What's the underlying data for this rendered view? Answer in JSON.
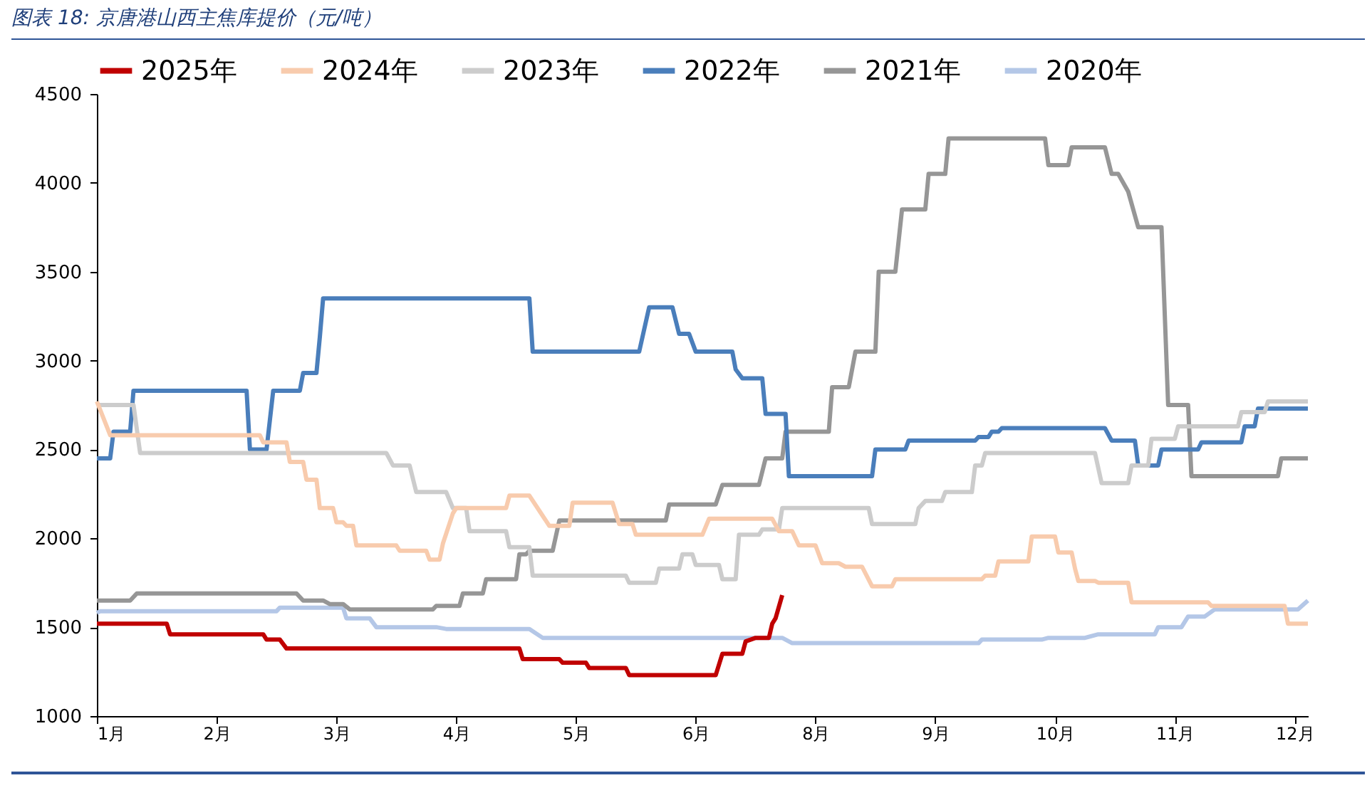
{
  "chart_data": {
    "type": "line",
    "title": "图表 18:  京唐港山西主焦库提价（元/吨）",
    "legend": "top",
    "line_style": "solid",
    "ylim": [
      1000,
      4500
    ],
    "yticks": [
      1000,
      1500,
      2000,
      2500,
      3000,
      3500,
      4000,
      4500
    ],
    "xlim": [
      "--01-01",
      "--12-31"
    ],
    "xticks": [
      {
        "value": "--01-01",
        "label": "1月"
      },
      {
        "value": "--02-06",
        "label": "2月"
      },
      {
        "value": "--03-14",
        "label": "3月"
      },
      {
        "value": "--04-19",
        "label": "4月"
      },
      {
        "value": "--05-25",
        "label": "5月"
      },
      {
        "value": "--06-30",
        "label": "6月"
      },
      {
        "value": "--08-05",
        "label": "8月"
      },
      {
        "value": "--09-10",
        "label": "9月"
      },
      {
        "value": "--10-16",
        "label": "10月"
      },
      {
        "value": "--11-21",
        "label": "11月"
      },
      {
        "value": "--12-27",
        "label": "12月"
      }
    ],
    "series": [
      {
        "name": "2025年",
        "color": "#c00000",
        "x": [
          "--01-01",
          "--01-22",
          "--01-23",
          "--02-20",
          "--02-21",
          "--02-25",
          "--02-27",
          "--05-08",
          "--05-09",
          "--05-20",
          "--05-21",
          "--05-28",
          "--05-29",
          "--06-09",
          "--06-10",
          "--07-06",
          "--07-08",
          "--07-14",
          "--07-15",
          "--07-18",
          "--07-22",
          "--07-23",
          "--07-24",
          "--07-26"
        ],
        "values": [
          1520,
          1520,
          1460,
          1460,
          1430,
          1430,
          1380,
          1380,
          1320,
          1320,
          1300,
          1300,
          1270,
          1270,
          1230,
          1230,
          1350,
          1350,
          1420,
          1440,
          1440,
          1520,
          1550,
          1680
        ]
      },
      {
        "name": "2024年",
        "color": "#f8cbad",
        "x": [
          "--01-01",
          "--01-05",
          "--02-19",
          "--02-20",
          "--02-27",
          "--02-28",
          "--03-04",
          "--03-05",
          "--03-08",
          "--03-09",
          "--03-13",
          "--03-14",
          "--03-16",
          "--03-17",
          "--03-19",
          "--03-20",
          "--04-01",
          "--04-02",
          "--04-10",
          "--04-11",
          "--04-14",
          "--04-15",
          "--04-18",
          "--04-19",
          "--05-04",
          "--05-05",
          "--05-11",
          "--05-17",
          "--05-23",
          "--05-24",
          "--06-05",
          "--06-07",
          "--06-11",
          "--06-12",
          "--07-02",
          "--07-04",
          "--07-23",
          "--07-25",
          "--07-29",
          "--07-31",
          "--08-05",
          "--08-07",
          "--08-12",
          "--08-14",
          "--08-19",
          "--08-22",
          "--08-28",
          "--08-29",
          "--09-24",
          "--09-25",
          "--09-28",
          "--09-29",
          "--10-08",
          "--10-09",
          "--10-16",
          "--10-17",
          "--10-21",
          "--10-22",
          "--10-23",
          "--10-28",
          "--10-29",
          "--11-07",
          "--11-08",
          "--12-01",
          "--12-02",
          "--12-24",
          "--12-25",
          "--12-31"
        ],
        "values": [
          2770,
          2580,
          2580,
          2540,
          2540,
          2430,
          2430,
          2330,
          2330,
          2170,
          2170,
          2090,
          2090,
          2070,
          2070,
          1960,
          1960,
          1930,
          1930,
          1880,
          1880,
          1970,
          2140,
          2170,
          2170,
          2240,
          2240,
          2070,
          2070,
          2200,
          2200,
          2080,
          2080,
          2020,
          2020,
          2110,
          2110,
          2040,
          2040,
          1960,
          1960,
          1860,
          1860,
          1840,
          1840,
          1730,
          1730,
          1770,
          1770,
          1790,
          1790,
          1870,
          1870,
          2010,
          2010,
          1920,
          1920,
          1830,
          1760,
          1760,
          1750,
          1750,
          1640,
          1640,
          1620,
          1620,
          1520,
          1520
        ]
      },
      {
        "name": "2023年",
        "color": "#cccccc",
        "x": [
          "--01-01",
          "--01-12",
          "--01-14",
          "--03-29",
          "--03-31",
          "--04-05",
          "--04-07",
          "--04-16",
          "--04-18",
          "--04-22",
          "--04-23",
          "--05-04",
          "--05-05",
          "--05-11",
          "--05-12",
          "--06-09",
          "--06-10",
          "--06-18",
          "--06-19",
          "--06-25",
          "--06-26",
          "--06-29",
          "--06-30",
          "--07-07",
          "--07-08",
          "--07-12",
          "--07-13",
          "--07-19",
          "--07-20",
          "--07-25",
          "--07-26",
          "--08-21",
          "--08-22",
          "--09-04",
          "--09-05",
          "--09-07",
          "--09-12",
          "--09-13",
          "--09-21",
          "--09-22",
          "--09-24",
          "--09-25",
          "--10-28",
          "--10-30",
          "--11-07",
          "--11-08",
          "--11-13",
          "--11-14",
          "--11-21",
          "--11-22",
          "--12-10",
          "--12-11",
          "--12-18",
          "--12-19",
          "--12-31"
        ],
        "values": [
          2750,
          2750,
          2480,
          2480,
          2410,
          2410,
          2260,
          2260,
          2170,
          2170,
          2040,
          2040,
          1950,
          1950,
          1790,
          1790,
          1750,
          1750,
          1830,
          1830,
          1910,
          1910,
          1850,
          1850,
          1770,
          1770,
          2020,
          2020,
          2050,
          2050,
          2170,
          2170,
          2080,
          2080,
          2170,
          2210,
          2210,
          2260,
          2260,
          2410,
          2410,
          2480,
          2480,
          2310,
          2310,
          2410,
          2410,
          2560,
          2560,
          2630,
          2630,
          2710,
          2710,
          2770,
          2770
        ]
      },
      {
        "name": "2022年",
        "color": "#4a7ebb",
        "x": [
          "--01-01",
          "--01-05",
          "--01-06",
          "--01-11",
          "--01-12",
          "--02-15",
          "--02-16",
          "--02-21",
          "--02-23",
          "--03-03",
          "--03-04",
          "--03-08",
          "--03-09",
          "--03-10",
          "--05-11",
          "--05-12",
          "--06-13",
          "--06-16",
          "--06-23",
          "--06-25",
          "--06-28",
          "--06-30",
          "--07-11",
          "--07-12",
          "--07-14",
          "--07-20",
          "--07-21",
          "--07-27",
          "--07-28",
          "--08-22",
          "--08-23",
          "--09-01",
          "--09-02",
          "--09-22",
          "--09-23",
          "--09-26",
          "--09-27",
          "--09-29",
          "--09-30",
          "--10-31",
          "--11-02",
          "--11-09",
          "--11-10",
          "--11-16",
          "--11-17",
          "--11-28",
          "--11-29",
          "--12-11",
          "--12-12",
          "--12-15",
          "--12-16",
          "--12-31"
        ],
        "values": [
          2450,
          2450,
          2600,
          2600,
          2830,
          2830,
          2500,
          2500,
          2830,
          2830,
          2930,
          2930,
          3130,
          3350,
          3350,
          3050,
          3050,
          3300,
          3300,
          3150,
          3150,
          3050,
          3050,
          2950,
          2900,
          2900,
          2700,
          2700,
          2350,
          2350,
          2500,
          2500,
          2550,
          2550,
          2570,
          2570,
          2600,
          2600,
          2620,
          2620,
          2550,
          2550,
          2410,
          2410,
          2500,
          2500,
          2540,
          2540,
          2630,
          2630,
          2730,
          2730
        ]
      },
      {
        "name": "2021年",
        "color": "#969696",
        "x": [
          "--01-01",
          "--01-11",
          "--01-13",
          "--03-02",
          "--03-04",
          "--03-10",
          "--03-12",
          "--03-16",
          "--03-18",
          "--04-12",
          "--04-13",
          "--04-20",
          "--04-21",
          "--04-27",
          "--04-28",
          "--05-07",
          "--05-08",
          "--05-10",
          "--05-11",
          "--05-18",
          "--05-20",
          "--06-21",
          "--06-22",
          "--07-06",
          "--07-08",
          "--07-19",
          "--07-21",
          "--07-26",
          "--07-27",
          "--08-09",
          "--08-10",
          "--08-15",
          "--08-17",
          "--08-23",
          "--08-24",
          "--08-29",
          "--08-31",
          "--09-07",
          "--09-08",
          "--09-13",
          "--09-14",
          "--10-13",
          "--10-14",
          "--10-20",
          "--10-21",
          "--10-31",
          "--11-02",
          "--11-04",
          "--11-07",
          "--11-10",
          "--11-17",
          "--11-19",
          "--11-25",
          "--11-26",
          "--12-22",
          "--12-23",
          "--12-31"
        ],
        "values": [
          1650,
          1650,
          1690,
          1690,
          1650,
          1650,
          1630,
          1630,
          1600,
          1600,
          1620,
          1620,
          1690,
          1690,
          1770,
          1770,
          1910,
          1910,
          1930,
          1930,
          2100,
          2100,
          2190,
          2190,
          2300,
          2300,
          2450,
          2450,
          2600,
          2600,
          2850,
          2850,
          3050,
          3050,
          3500,
          3500,
          3850,
          3850,
          4050,
          4050,
          4250,
          4250,
          4100,
          4100,
          4200,
          4200,
          4050,
          4050,
          3950,
          3750,
          3750,
          2750,
          2750,
          2350,
          2350,
          2450,
          2450
        ]
      },
      {
        "name": "2020年",
        "color": "#b4c7e7",
        "x": [
          "--01-01",
          "--01-02",
          "--02-24",
          "--02-25",
          "--03-16",
          "--03-17",
          "--03-24",
          "--03-26",
          "--04-13",
          "--04-16",
          "--05-11",
          "--05-15",
          "--07-26",
          "--07-29",
          "--09-23",
          "--09-24",
          "--10-12",
          "--10-14",
          "--10-25",
          "--10-29",
          "--11-15",
          "--11-16",
          "--11-23",
          "--11-25",
          "--11-30",
          "--12-03",
          "--12-28",
          "--12-31"
        ],
        "values": [
          1580,
          1590,
          1590,
          1610,
          1610,
          1550,
          1550,
          1500,
          1500,
          1490,
          1490,
          1440,
          1440,
          1410,
          1410,
          1430,
          1430,
          1440,
          1440,
          1460,
          1460,
          1500,
          1500,
          1560,
          1560,
          1600,
          1600,
          1650
        ]
      }
    ]
  }
}
